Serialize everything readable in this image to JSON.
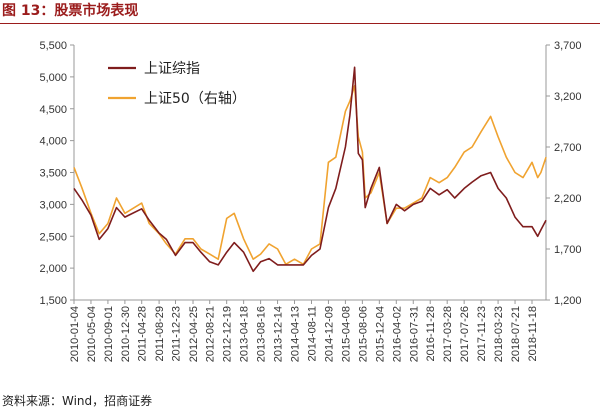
{
  "header": {
    "title": "图 13：股票市场表现"
  },
  "footer": {
    "source": "资料来源：Wind，招商证券"
  },
  "colors": {
    "title": "#9b1c1c",
    "composite": "#7f1d1d",
    "sse50": "#f0a330",
    "axis": "#333333"
  },
  "chart_data": {
    "type": "line",
    "title": "",
    "legend": {
      "placement": "top-left"
    },
    "grid": false,
    "x_tick_labels": [
      "2010-01-04",
      "2010-05-04",
      "2010-09-01",
      "2010-12-30",
      "2011-04-28",
      "2011-08-29",
      "2011-12-23",
      "2012-04-25",
      "2012-08-21",
      "2012-12-19",
      "2013-04-18",
      "2013-08-16",
      "2013-12-14",
      "2014-04-13",
      "2014-08-11",
      "2014-12-09",
      "2015-04-08",
      "2015-08-06",
      "2015-12-04",
      "2016-04-02",
      "2016-07-31",
      "2016-11-28",
      "2017-03-28",
      "2017-07-26",
      "2017-11-23",
      "2018-03-23",
      "2018-07-21",
      "2018-11-18"
    ],
    "y_left": {
      "lim": [
        1500,
        5500
      ],
      "ticks": [
        "1,500",
        "2,000",
        "2,500",
        "3,000",
        "3,500",
        "4,000",
        "4,500",
        "5,000",
        "5,500"
      ]
    },
    "y_right": {
      "lim": [
        1200,
        3700
      ],
      "ticks": [
        "1,200",
        "1,700",
        "2,200",
        "2,700",
        "3,200",
        "3,700"
      ]
    },
    "series": [
      {
        "name": "上证综指",
        "axis": "left",
        "x": [
          "2010-01-04",
          "2010-03-01",
          "2010-05-04",
          "2010-07-01",
          "2010-09-01",
          "2010-11-01",
          "2010-12-30",
          "2011-04-28",
          "2011-06-20",
          "2011-08-29",
          "2011-10-20",
          "2011-12-23",
          "2012-02-28",
          "2012-04-25",
          "2012-06-20",
          "2012-08-21",
          "2012-10-20",
          "2012-12-19",
          "2013-02-10",
          "2013-04-18",
          "2013-06-25",
          "2013-08-16",
          "2013-10-15",
          "2013-12-14",
          "2014-02-10",
          "2014-04-13",
          "2014-06-15",
          "2014-08-11",
          "2014-10-10",
          "2014-12-09",
          "2015-01-30",
          "2015-04-08",
          "2015-05-10",
          "2015-06-12",
          "2015-07-08",
          "2015-08-06",
          "2015-08-26",
          "2015-10-05",
          "2015-12-04",
          "2016-01-28",
          "2016-04-02",
          "2016-05-30",
          "2016-07-31",
          "2016-09-30",
          "2016-11-28",
          "2017-01-30",
          "2017-03-28",
          "2017-05-20",
          "2017-07-26",
          "2017-09-20",
          "2017-11-23",
          "2018-01-29",
          "2018-03-23",
          "2018-05-20",
          "2018-07-21",
          "2018-09-15",
          "2018-11-18",
          "2018-12-28",
          "2019-01-20",
          "2019-02-25"
        ],
        "y": [
          3250,
          3070,
          2830,
          2450,
          2620,
          2950,
          2800,
          2930,
          2750,
          2550,
          2450,
          2200,
          2400,
          2400,
          2250,
          2100,
          2050,
          2250,
          2400,
          2250,
          1950,
          2100,
          2150,
          2050,
          2050,
          2050,
          2050,
          2200,
          2300,
          2950,
          3250,
          3900,
          4400,
          5150,
          3800,
          3700,
          2950,
          3250,
          3580,
          2700,
          3000,
          2900,
          3000,
          3050,
          3250,
          3150,
          3230,
          3100,
          3250,
          3350,
          3450,
          3500,
          3250,
          3100,
          2800,
          2650,
          2650,
          2500,
          2600,
          2750
        ]
      },
      {
        "name": "上证50（右轴）",
        "axis": "right",
        "x": [
          "2010-01-04",
          "2010-03-01",
          "2010-05-04",
          "2010-07-01",
          "2010-09-01",
          "2010-11-01",
          "2010-12-30",
          "2011-04-28",
          "2011-06-20",
          "2011-08-29",
          "2011-10-20",
          "2011-12-23",
          "2012-02-28",
          "2012-04-25",
          "2012-06-20",
          "2012-08-21",
          "2012-10-20",
          "2012-12-19",
          "2013-02-10",
          "2013-04-18",
          "2013-06-25",
          "2013-08-16",
          "2013-10-15",
          "2013-12-14",
          "2014-02-10",
          "2014-04-13",
          "2014-06-15",
          "2014-08-11",
          "2014-10-10",
          "2014-12-09",
          "2015-01-30",
          "2015-04-08",
          "2015-05-10",
          "2015-06-12",
          "2015-07-08",
          "2015-08-06",
          "2015-08-26",
          "2015-10-05",
          "2015-12-04",
          "2016-01-28",
          "2016-04-02",
          "2016-05-30",
          "2016-07-31",
          "2016-09-30",
          "2016-11-28",
          "2017-01-30",
          "2017-03-28",
          "2017-05-20",
          "2017-07-26",
          "2017-09-20",
          "2017-11-23",
          "2018-01-29",
          "2018-03-23",
          "2018-05-20",
          "2018-07-21",
          "2018-09-15",
          "2018-11-18",
          "2018-12-28",
          "2019-01-20",
          "2019-02-25"
        ],
        "y": [
          2500,
          2300,
          2050,
          1850,
          1950,
          2200,
          2050,
          2150,
          1950,
          1850,
          1750,
          1650,
          1800,
          1800,
          1700,
          1650,
          1600,
          2000,
          2050,
          1800,
          1600,
          1650,
          1750,
          1700,
          1550,
          1600,
          1550,
          1700,
          1750,
          2550,
          2600,
          3050,
          3150,
          3300,
          2800,
          2650,
          2200,
          2250,
          2450,
          1950,
          2100,
          2100,
          2150,
          2200,
          2400,
          2350,
          2400,
          2500,
          2650,
          2700,
          2850,
          3000,
          2800,
          2600,
          2450,
          2400,
          2550,
          2400,
          2450,
          2600
        ]
      }
    ]
  }
}
